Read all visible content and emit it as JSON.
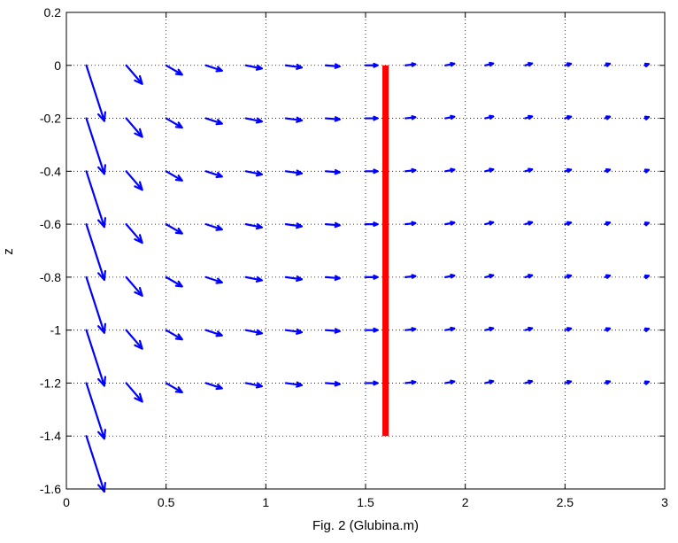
{
  "chart_data": {
    "type": "quiver",
    "title": "",
    "xlabel": "Fig. 2 (Glubina.m)",
    "ylabel": "z",
    "xlim": [
      0,
      3
    ],
    "ylim": [
      -1.6,
      0.2
    ],
    "xticks": [
      0,
      0.5,
      1,
      1.5,
      2,
      2.5,
      3
    ],
    "yticks": [
      0.2,
      0,
      -0.2,
      -0.4,
      -0.6,
      -0.8,
      -1,
      -1.2,
      -1.4,
      -1.6
    ],
    "xtick_labels": [
      "0",
      "0.5",
      "1",
      "1.5",
      "2",
      "2.5",
      "3"
    ],
    "ytick_labels": [
      "0.2",
      "0",
      "-0.2",
      "-0.4",
      "-0.6",
      "-0.8",
      "-1",
      "-1.2",
      "-1.4",
      "-1.6"
    ],
    "grid": true,
    "x_positions": [
      0.1,
      0.3,
      0.5,
      0.7,
      0.9,
      1.1,
      1.3,
      1.5,
      1.7,
      1.9,
      2.1,
      2.3,
      2.5,
      2.7,
      2.9
    ],
    "z_positions_all_columns": [
      0,
      -0.2,
      -0.4,
      -0.6,
      -0.8,
      -1.0,
      -1.2
    ],
    "z_positions_first_column": [
      0,
      -0.2,
      -0.4,
      -0.6,
      -0.8,
      -1.0,
      -1.2,
      -1.4
    ],
    "arrow_color": "#0000ff",
    "vectors": [
      {
        "x": 0.1,
        "u": 0.09,
        "w": -0.21
      },
      {
        "x": 0.3,
        "u": 0.08,
        "w": -0.07
      },
      {
        "x": 0.5,
        "u": 0.08,
        "w": -0.035
      },
      {
        "x": 0.7,
        "u": 0.08,
        "w": -0.02
      },
      {
        "x": 0.9,
        "u": 0.08,
        "w": -0.012
      },
      {
        "x": 1.1,
        "u": 0.08,
        "w": -0.008
      },
      {
        "x": 1.3,
        "u": 0.07,
        "w": -0.004
      },
      {
        "x": 1.5,
        "u": 0.06,
        "w": 0.0
      },
      {
        "x": 1.7,
        "u": 0.05,
        "w": 0.004
      },
      {
        "x": 1.9,
        "u": 0.045,
        "w": 0.006
      },
      {
        "x": 2.1,
        "u": 0.04,
        "w": 0.007
      },
      {
        "x": 2.3,
        "u": 0.035,
        "w": 0.007
      },
      {
        "x": 2.5,
        "u": 0.03,
        "w": 0.006
      },
      {
        "x": 2.7,
        "u": 0.025,
        "w": 0.006
      },
      {
        "x": 2.9,
        "u": 0.02,
        "w": 0.005
      }
    ],
    "wall": {
      "x": 1.6,
      "z_top": 0.0,
      "z_bottom": -1.4,
      "color": "#ff0000"
    }
  }
}
